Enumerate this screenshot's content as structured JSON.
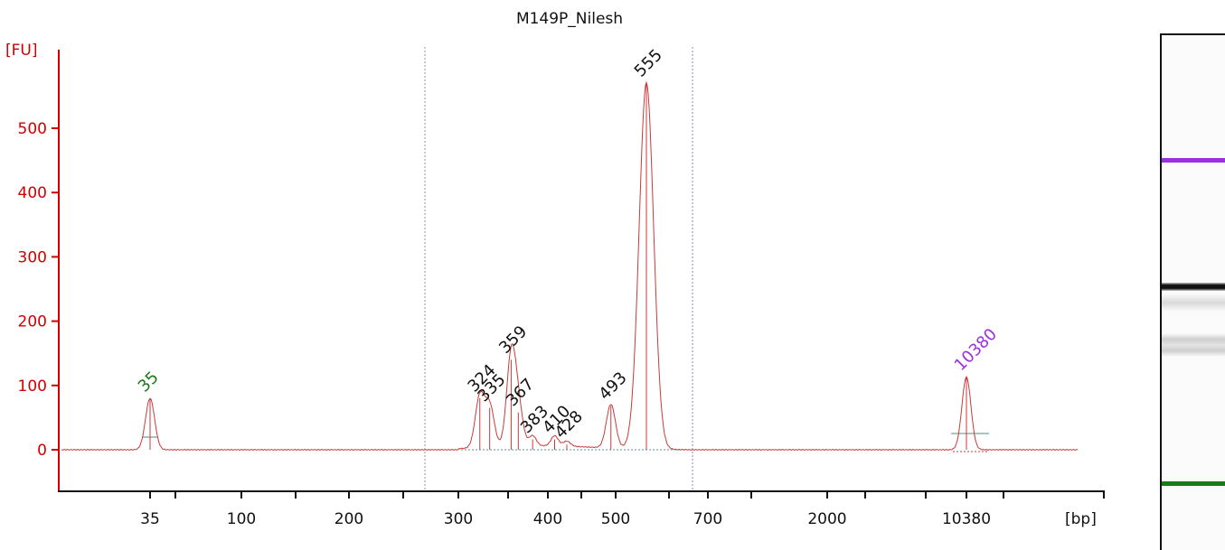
{
  "chart_data": {
    "type": "line",
    "title": "M149P_Nilesh",
    "ylabel": "[FU]",
    "xlabel": "[bp]",
    "ylim": [
      -58,
      655
    ],
    "y_ticks": [
      0,
      100,
      200,
      300,
      400,
      500
    ],
    "x_tick_labels": [
      "35",
      "100",
      "200",
      "300",
      "400",
      "500",
      "700",
      "2000",
      "10380"
    ],
    "grid": false,
    "colors": {
      "axis": "#d00000",
      "trace": "#c83a3a",
      "lower_marker": "#1a7a1a",
      "upper_marker": "#9b30e0",
      "labels": "#111111",
      "cutoff_line": "#888888"
    },
    "series": [
      {
        "values": [
          {
            "bp": 35,
            "fu": 80
          },
          {
            "bp": 324,
            "fu": 80
          },
          {
            "bp": 335,
            "fu": 65
          },
          {
            "bp": 359,
            "fu": 140
          },
          {
            "bp": 367,
            "fu": 58
          },
          {
            "bp": 383,
            "fu": 16
          },
          {
            "bp": 410,
            "fu": 16
          },
          {
            "bp": 428,
            "fu": 8
          },
          {
            "bp": 493,
            "fu": 68
          },
          {
            "bp": 555,
            "fu": 570
          },
          {
            "bp": 10380,
            "fu": 113
          }
        ]
      }
    ],
    "peak_labels": [
      {
        "label": "35",
        "bp": 35,
        "fu": 80,
        "color": "#1a7a1a"
      },
      {
        "label": "324",
        "bp": 324,
        "fu": 80,
        "color": "#111111"
      },
      {
        "label": "335",
        "bp": 335,
        "fu": 65,
        "color": "#111111"
      },
      {
        "label": "359",
        "bp": 359,
        "fu": 140,
        "color": "#111111"
      },
      {
        "label": "367",
        "bp": 367,
        "fu": 58,
        "color": "#111111"
      },
      {
        "label": "383",
        "bp": 383,
        "fu": 16,
        "color": "#111111"
      },
      {
        "label": "410",
        "bp": 410,
        "fu": 16,
        "color": "#111111"
      },
      {
        "label": "428",
        "bp": 428,
        "fu": 8,
        "color": "#111111"
      },
      {
        "label": "493",
        "bp": 493,
        "fu": 68,
        "color": "#111111"
      },
      {
        "label": "555",
        "bp": 555,
        "fu": 570,
        "color": "#111111"
      },
      {
        "label": "10380",
        "bp": 10380,
        "fu": 113,
        "color": "#9b30e0"
      }
    ],
    "region_bounds_bp": [
      260,
      650
    ]
  }
}
